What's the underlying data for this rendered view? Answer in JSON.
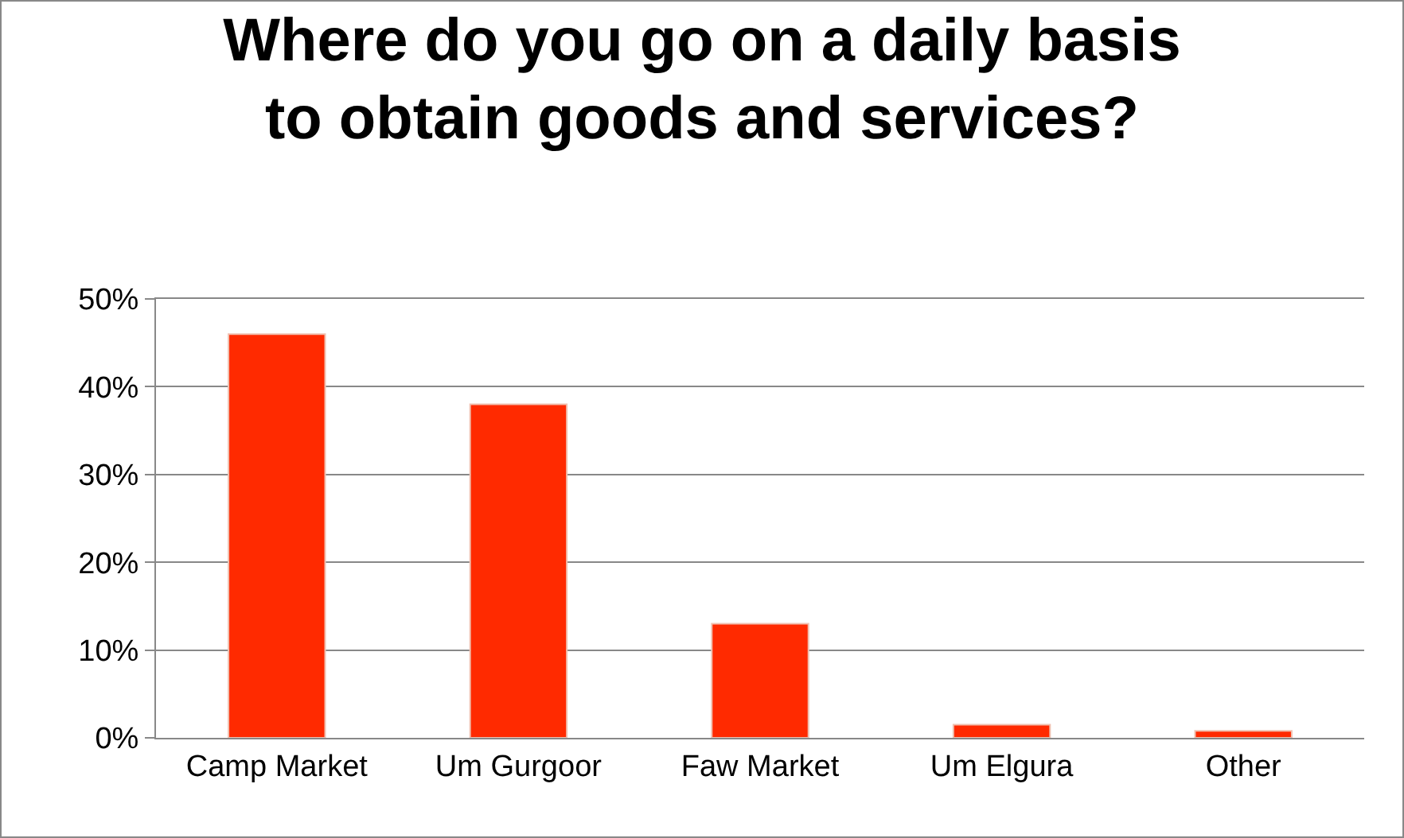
{
  "chart_data": {
    "type": "bar",
    "title": "Where do you go on a daily basis\nto obtain goods and services?",
    "categories": [
      "Camp Market",
      "Um Gurgoor",
      "Faw Market",
      "Um Elgura",
      "Other"
    ],
    "values": [
      46,
      38,
      13,
      1.5,
      0.8
    ],
    "color": "#ff2a00",
    "ylim": [
      0,
      50
    ],
    "yticks": [
      {
        "value": 0,
        "label": "0%"
      },
      {
        "value": 10,
        "label": "10%"
      },
      {
        "value": 20,
        "label": "20%"
      },
      {
        "value": 30,
        "label": "30%"
      },
      {
        "value": 40,
        "label": "40%"
      },
      {
        "value": 50,
        "label": "50%"
      }
    ],
    "grid": "y",
    "legend": false
  }
}
